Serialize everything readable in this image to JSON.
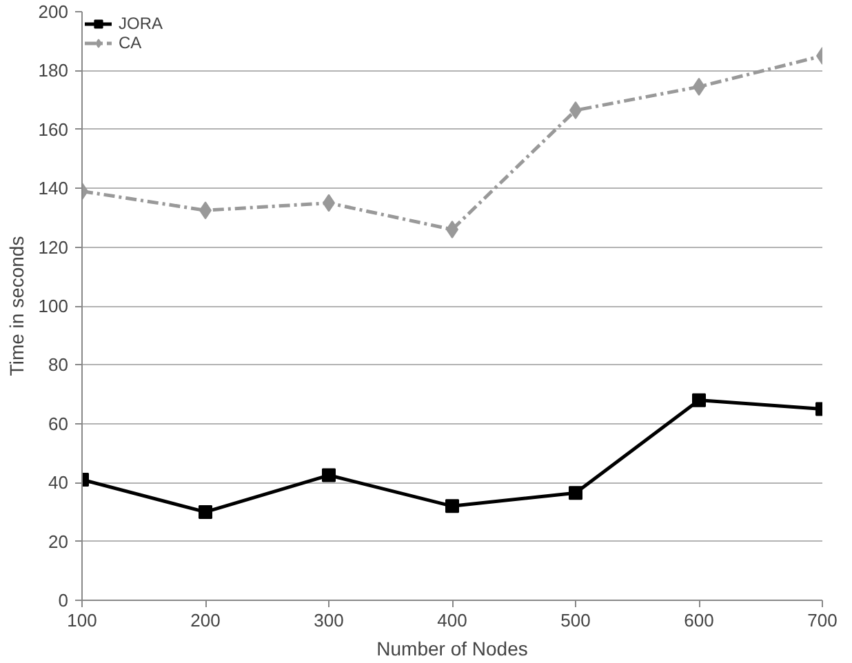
{
  "chart_data": {
    "type": "line",
    "xlabel": "Number of Nodes",
    "ylabel": "Time in seconds",
    "x": [
      100,
      200,
      300,
      400,
      500,
      600,
      700
    ],
    "series": [
      {
        "name": "JORA",
        "color": "#000000",
        "marker": "square",
        "line_style": "solid",
        "values": [
          41,
          30,
          42.5,
          32,
          36.5,
          68,
          65
        ]
      },
      {
        "name": "CA",
        "color": "#999999",
        "marker": "diamond",
        "line_style": "dashed",
        "values": [
          139,
          132.5,
          135,
          126,
          166.5,
          174.5,
          185
        ]
      }
    ],
    "xlim": [
      100,
      700
    ],
    "xticks": [
      100,
      200,
      300,
      400,
      500,
      600,
      700
    ],
    "ylim": [
      0,
      200
    ],
    "yticks": [
      0,
      20,
      40,
      60,
      80,
      100,
      120,
      140,
      160,
      180,
      200
    ],
    "grid": "y",
    "legend": "top left"
  }
}
